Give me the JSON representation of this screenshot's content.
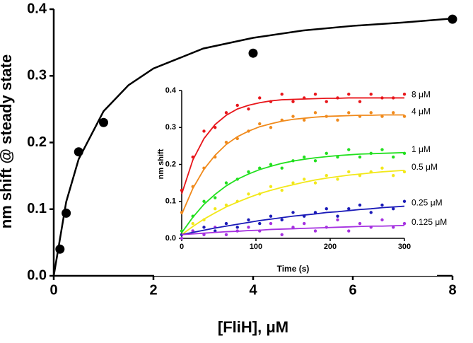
{
  "chart_data": [
    {
      "type": "scatter",
      "x_label": "[FliH], μM",
      "y_label": "nm shift @ steady state",
      "x": [
        0.125,
        0.25,
        0.5,
        1,
        4,
        8
      ],
      "values": [
        0.04,
        0.094,
        0.186,
        0.23,
        0.334,
        0.385
      ],
      "color": "#000000",
      "fit": {
        "x": [
          0,
          0.25,
          0.5,
          1,
          1.5,
          2,
          3,
          4,
          5,
          6,
          7,
          8
        ],
        "values": [
          0,
          0.111,
          0.175,
          0.247,
          0.286,
          0.311,
          0.341,
          0.357,
          0.368,
          0.375,
          0.38,
          0.386
        ]
      },
      "xlim": [
        0,
        8
      ],
      "ylim": [
        0,
        0.4
      ],
      "xticks": [
        0,
        2,
        4,
        6,
        8
      ],
      "yticks": [
        {
          "value": 0,
          "label": "0.0"
        },
        0.1,
        0.2,
        0.3,
        0.4
      ]
    },
    {
      "type": "scatter",
      "x_label": "Time (s)",
      "y_label": "nm shift",
      "x": [
        0,
        15,
        30,
        45,
        60,
        75,
        90,
        105,
        120,
        135,
        150,
        165,
        180,
        195,
        210,
        225,
        240,
        255,
        270,
        285,
        300
      ],
      "series": [
        {
          "name": "8 μM",
          "color": "#e8161b",
          "values": [
            0.13,
            0.22,
            0.29,
            0.3,
            0.34,
            0.36,
            0.35,
            0.38,
            0.37,
            0.39,
            0.37,
            0.38,
            0.39,
            0.37,
            0.38,
            0.39,
            0.37,
            0.39,
            0.38,
            0.38,
            0.39
          ],
          "fit": [
            0.12,
            0.212,
            0.27,
            0.308,
            0.333,
            0.35,
            0.36,
            0.367,
            0.372,
            0.375,
            0.376,
            0.377,
            0.378,
            0.379,
            0.379,
            0.38,
            0.38,
            0.38,
            0.38,
            0.38,
            0.38
          ]
        },
        {
          "name": "4 μM",
          "color": "#f08a1c",
          "values": [
            0.07,
            0.14,
            0.19,
            0.22,
            0.26,
            0.27,
            0.29,
            0.31,
            0.3,
            0.32,
            0.33,
            0.32,
            0.34,
            0.33,
            0.32,
            0.34,
            0.33,
            0.34,
            0.33,
            0.34,
            0.33
          ],
          "fit": [
            0.065,
            0.135,
            0.187,
            0.225,
            0.254,
            0.275,
            0.29,
            0.302,
            0.31,
            0.317,
            0.322,
            0.325,
            0.328,
            0.33,
            0.331,
            0.332,
            0.333,
            0.333,
            0.334,
            0.334,
            0.334
          ]
        },
        {
          "name": "1 μM",
          "color": "#22e01f",
          "values": [
            0.02,
            0.06,
            0.1,
            0.11,
            0.15,
            0.16,
            0.18,
            0.19,
            0.2,
            0.19,
            0.21,
            0.22,
            0.21,
            0.23,
            0.22,
            0.24,
            0.22,
            0.23,
            0.24,
            0.22,
            0.23
          ],
          "fit": [
            0.015,
            0.057,
            0.092,
            0.119,
            0.142,
            0.16,
            0.174,
            0.186,
            0.195,
            0.203,
            0.209,
            0.214,
            0.218,
            0.221,
            0.224,
            0.226,
            0.228,
            0.229,
            0.23,
            0.231,
            0.232
          ]
        },
        {
          "name": "0.5 μM",
          "color": "#f2e81b",
          "values": [
            0.01,
            0.04,
            0.05,
            0.08,
            0.09,
            0.1,
            0.12,
            0.12,
            0.14,
            0.13,
            0.15,
            0.16,
            0.15,
            0.17,
            0.16,
            0.18,
            0.17,
            0.18,
            0.19,
            0.17,
            0.18
          ],
          "fit": [
            0.01,
            0.032,
            0.052,
            0.069,
            0.085,
            0.098,
            0.11,
            0.121,
            0.13,
            0.138,
            0.145,
            0.152,
            0.158,
            0.163,
            0.167,
            0.171,
            0.174,
            0.177,
            0.18,
            0.182,
            0.184
          ]
        },
        {
          "name": "0.25 μM",
          "color": "#1a1ab8",
          "values": [
            0.01,
            0.02,
            0.03,
            0.02,
            0.04,
            0.03,
            0.05,
            0.04,
            0.06,
            0.05,
            0.07,
            0.06,
            0.07,
            0.08,
            0.06,
            0.08,
            0.09,
            0.07,
            0.09,
            0.08,
            0.1
          ],
          "fit": [
            0.01,
            0.016,
            0.022,
            0.028,
            0.033,
            0.038,
            0.043,
            0.048,
            0.052,
            0.056,
            0.06,
            0.063,
            0.066,
            0.07,
            0.072,
            0.075,
            0.078,
            0.08,
            0.083,
            0.085,
            0.087
          ]
        },
        {
          "name": "0.125 μM",
          "color": "#a531e0",
          "values": [
            0.0,
            0.02,
            0.01,
            0.03,
            0.01,
            0.02,
            0.03,
            0.02,
            0.04,
            0.01,
            0.03,
            0.04,
            0.02,
            0.03,
            0.05,
            0.02,
            0.04,
            0.03,
            0.05,
            0.03,
            0.04
          ],
          "fit": [
            0.01,
            0.012,
            0.014,
            0.016,
            0.018,
            0.019,
            0.021,
            0.022,
            0.024,
            0.025,
            0.026,
            0.027,
            0.028,
            0.029,
            0.03,
            0.031,
            0.032,
            0.033,
            0.033,
            0.034,
            0.035
          ]
        }
      ],
      "xlim": [
        0,
        300
      ],
      "ylim": [
        0,
        0.4
      ],
      "xticks": [
        0,
        100,
        200,
        300
      ],
      "yticks": [
        {
          "value": 0,
          "label": "0.0"
        },
        0.1,
        0.2,
        0.3,
        0.4
      ]
    }
  ]
}
